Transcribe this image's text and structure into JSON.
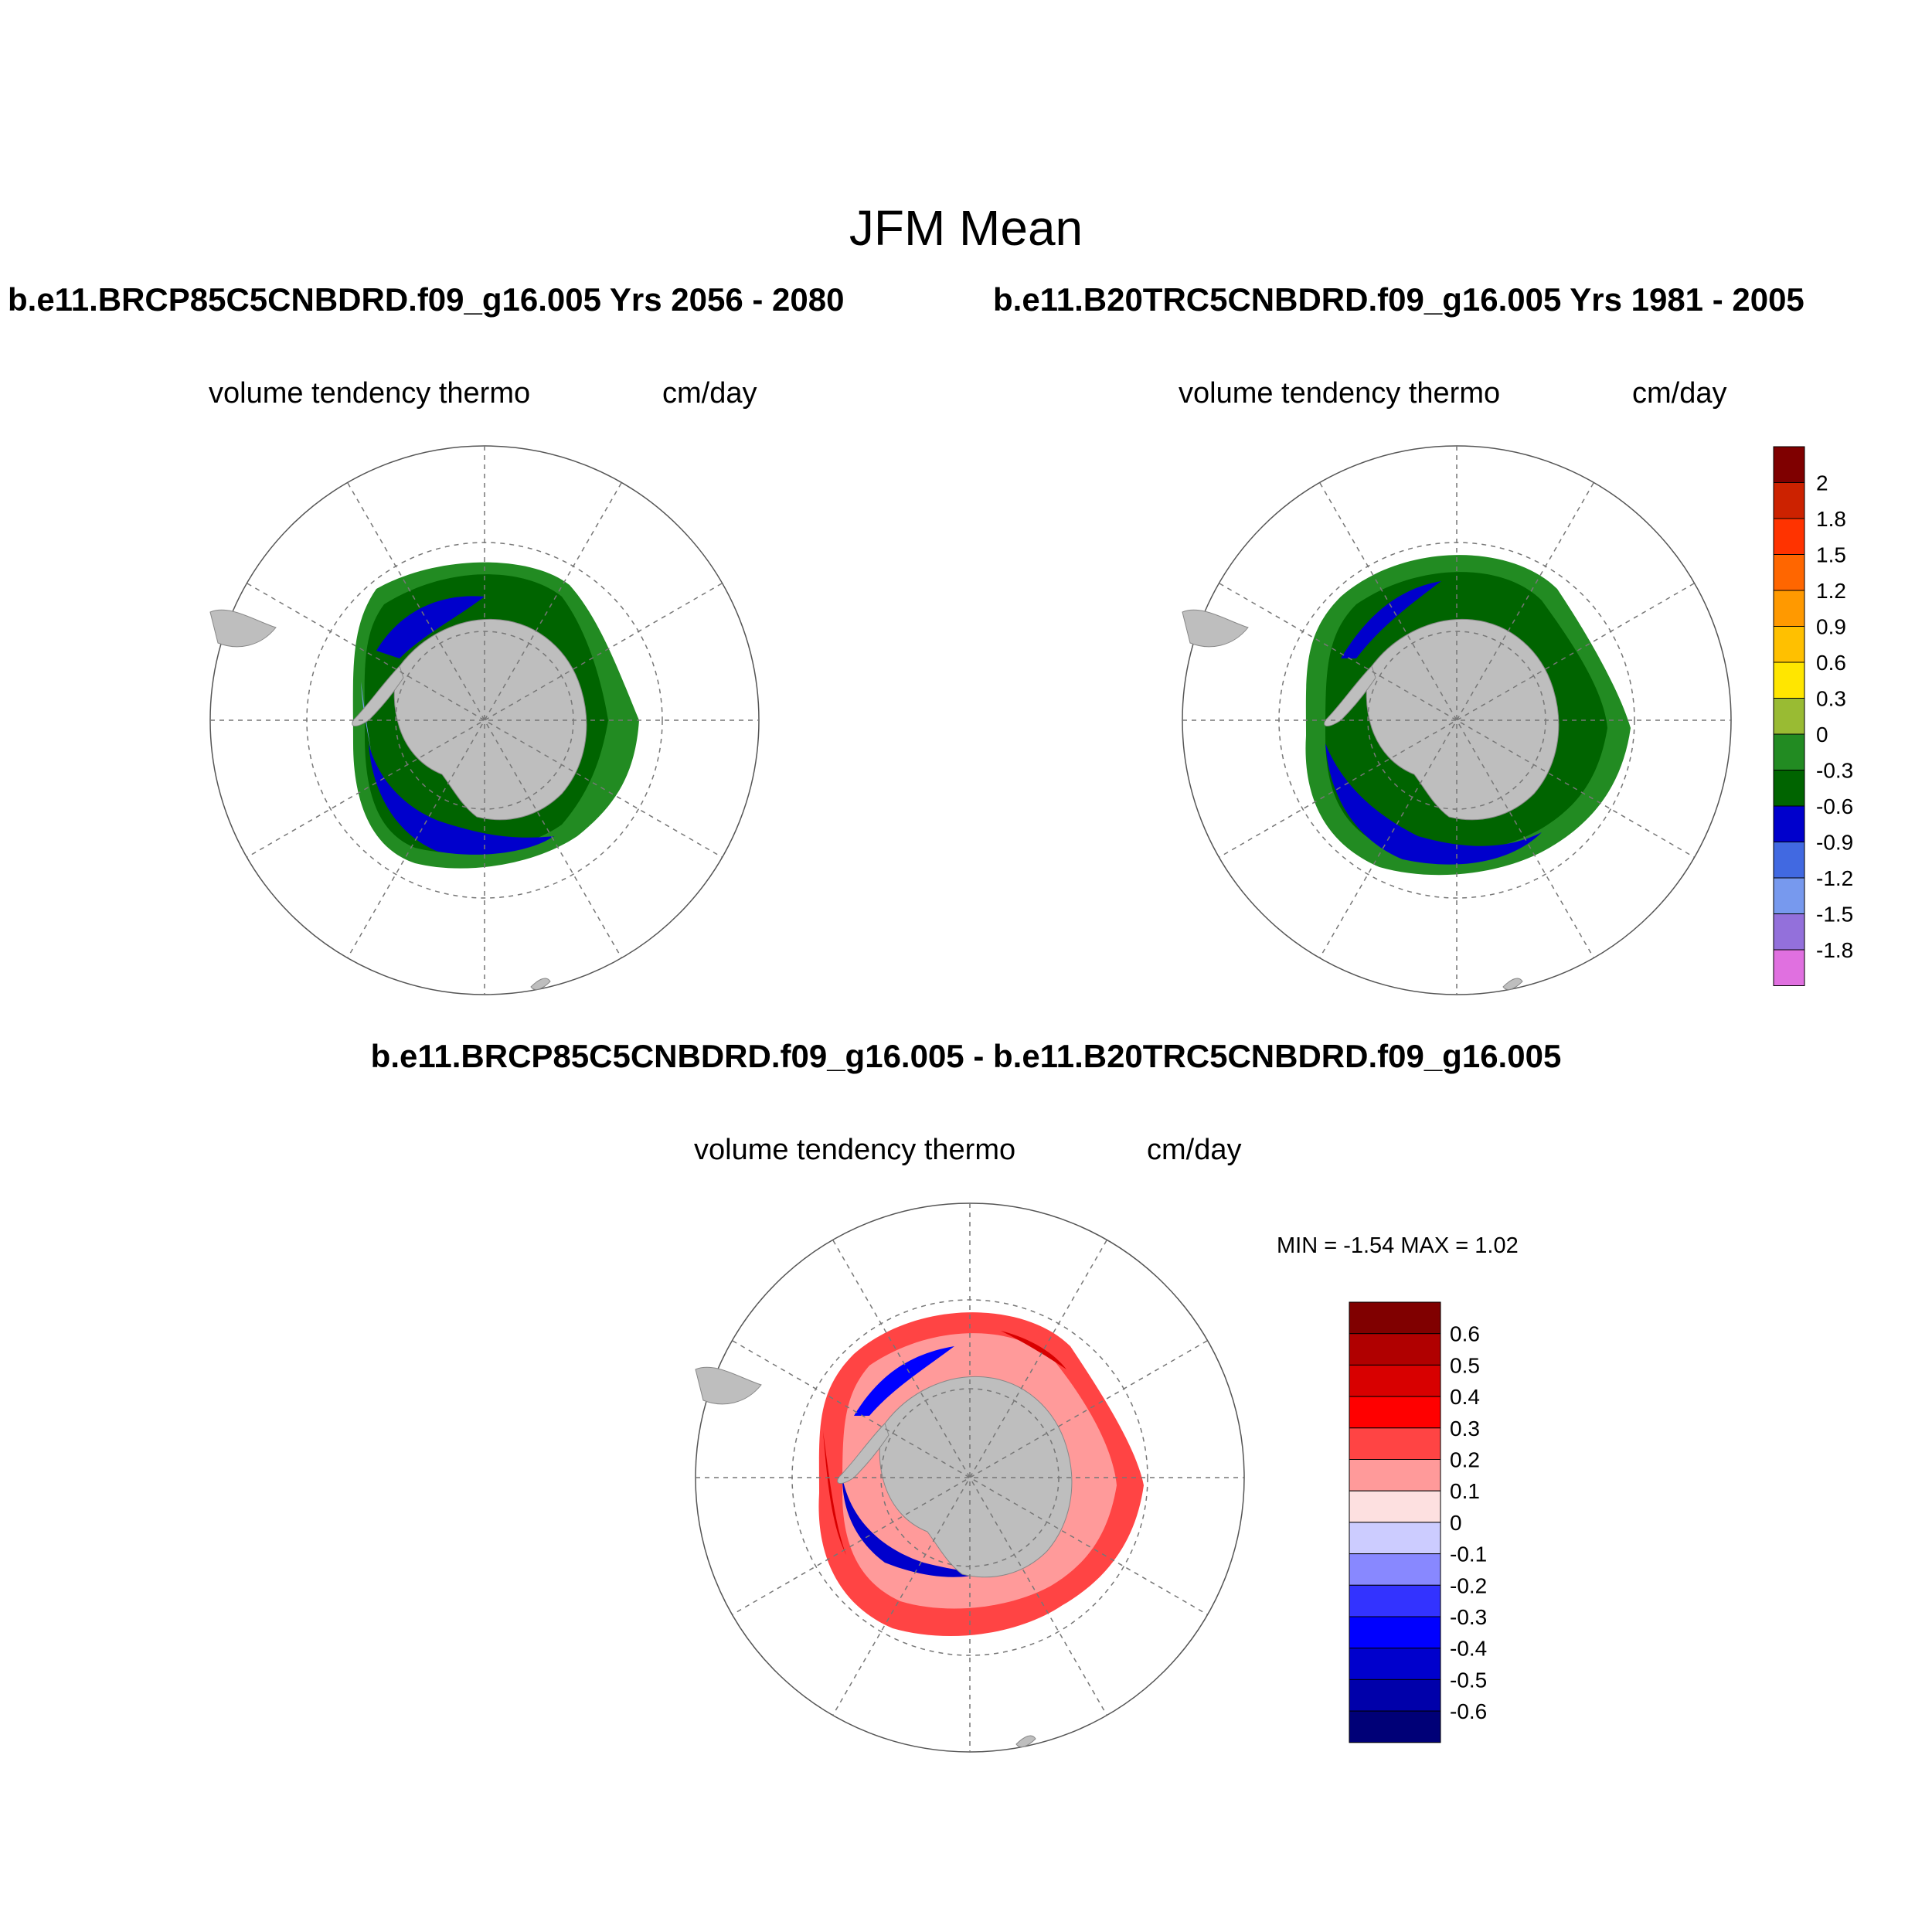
{
  "figure": {
    "title": "JFM Mean",
    "case_left": "b.e11.BRCP85C5CNBDRD.f09_g16.005  Yrs 2056 - 2080",
    "case_right": "b.e11.B20TRC5CNBDRD.f09_g16.005  Yrs 1981 - 2005",
    "case_diff": "b.e11.BRCP85C5CNBDRD.f09_g16.005 - b.e11.B20TRC5CNBDRD.f09_g16.005"
  },
  "panels": {
    "left": {
      "variable": "volume tendency thermo",
      "units": "cm/day"
    },
    "right": {
      "variable": "volume tendency thermo",
      "units": "cm/day"
    },
    "diff": {
      "variable": "volume tendency thermo",
      "units": "cm/day",
      "stats": "MIN =  -1.54 MAX =   1.02"
    }
  },
  "colorbar_main": {
    "labels": [
      "2",
      "1.8",
      "1.5",
      "1.2",
      "0.9",
      "0.6",
      "0.3",
      "0",
      "-0.3",
      "-0.6",
      "-0.9",
      "-1.2",
      "-1.5",
      "-1.8"
    ],
    "colors": [
      "#7f0000",
      "#cc2200",
      "#ff3300",
      "#ff6600",
      "#ff9900",
      "#ffc000",
      "#ffe600",
      "#99bb33",
      "#228b22",
      "#006400",
      "#0000cc",
      "#4169e1",
      "#7799ee",
      "#9370db",
      "#e070e0"
    ]
  },
  "colorbar_diff": {
    "labels": [
      "0.6",
      "0.5",
      "0.4",
      "0.3",
      "0.2",
      "0.1",
      "0",
      "-0.1",
      "-0.2",
      "-0.3",
      "-0.4",
      "-0.5",
      "-0.6"
    ],
    "colors": [
      "#800000",
      "#b00000",
      "#d80000",
      "#ff0000",
      "#ff4444",
      "#ff9a9a",
      "#fde0e0",
      "#ccccff",
      "#8888ff",
      "#3333ff",
      "#0000ff",
      "#0000cc",
      "#0000aa",
      "#000077"
    ]
  },
  "colors": {
    "land": "#bebebe",
    "grid": "#777777"
  }
}
